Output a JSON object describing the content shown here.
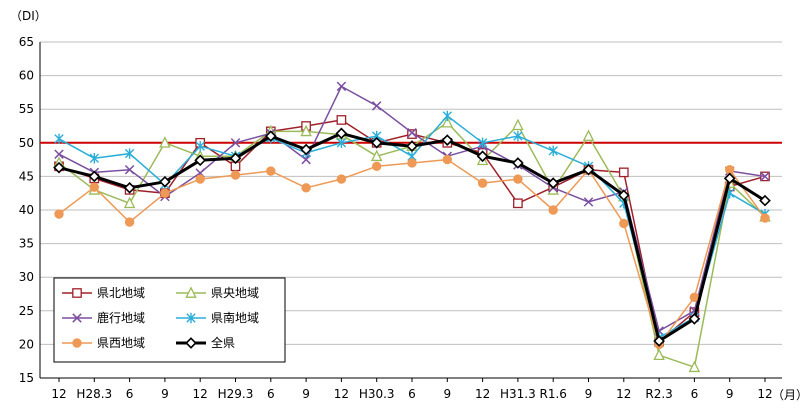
{
  "chart_data": {
    "type": "line",
    "y_unit_label": "（DI）",
    "x_unit_label": "（月）",
    "x_tick_labels": [
      "12",
      "H28.3",
      "6",
      "9",
      "12",
      "H29.3",
      "6",
      "9",
      "12",
      "H30.3",
      "6",
      "9",
      "12",
      "H31.3",
      "R1.6",
      "9",
      "12",
      "R2.3",
      "6",
      "9",
      "12"
    ],
    "ylim": [
      15,
      65
    ],
    "y_ticks": [
      15,
      20,
      25,
      30,
      35,
      40,
      45,
      50,
      55,
      60,
      65
    ],
    "reference_line": {
      "value": 50,
      "color": "#cc0000"
    },
    "grid": true,
    "legend_placement": "bottom-left",
    "series": [
      {
        "name": "県北地域",
        "color": "#a0202a",
        "marker": "square",
        "values": [
          46.5,
          44.7,
          43.0,
          42.5,
          50.0,
          46.5,
          51.7,
          52.5,
          53.4,
          50.0,
          51.3,
          50.0,
          48.5,
          41.0,
          43.4,
          46.0,
          45.6,
          20.4,
          24.8,
          43.5,
          45.0
        ]
      },
      {
        "name": "県央地域",
        "color": "#9bbb59",
        "marker": "triangle",
        "values": [
          47.0,
          43.0,
          41.0,
          50.0,
          48.0,
          48.0,
          51.7,
          51.7,
          51.2,
          48.0,
          49.5,
          53.0,
          47.4,
          52.6,
          43.0,
          51.0,
          42.0,
          18.4,
          16.6,
          44.0,
          39.0
        ]
      },
      {
        "name": "鹿行地域",
        "color": "#7b4fa0",
        "marker": "x",
        "values": [
          48.3,
          45.6,
          46.0,
          42.0,
          45.5,
          50.0,
          51.4,
          47.5,
          58.4,
          55.5,
          51.5,
          48.0,
          49.5,
          46.7,
          43.3,
          41.2,
          42.7,
          22.0,
          25.0,
          45.8,
          45.0
        ]
      },
      {
        "name": "県南地域",
        "color": "#2aaed8",
        "marker": "star",
        "values": [
          50.6,
          47.7,
          48.4,
          43.8,
          49.5,
          48.0,
          50.7,
          48.5,
          50.0,
          51.0,
          48.0,
          54.0,
          50.0,
          51.0,
          48.8,
          46.5,
          41.0,
          21.0,
          24.0,
          42.5,
          39.4
        ]
      },
      {
        "name": "県西地域",
        "color": "#ee9955",
        "marker": "circle",
        "values": [
          39.4,
          43.4,
          38.2,
          42.5,
          44.6,
          45.2,
          45.8,
          43.3,
          44.6,
          46.5,
          47.0,
          47.5,
          44.0,
          44.6,
          40.0,
          46.0,
          38.0,
          20.0,
          27.0,
          46.0,
          38.8
        ]
      },
      {
        "name": "全県",
        "color": "#000000",
        "marker": "diamond",
        "bold": true,
        "values": [
          46.3,
          45.0,
          43.3,
          44.2,
          47.4,
          47.7,
          51.0,
          49.0,
          51.4,
          50.0,
          49.5,
          50.4,
          48.0,
          47.0,
          44.0,
          46.0,
          42.2,
          20.5,
          23.8,
          44.7,
          41.4
        ]
      }
    ]
  }
}
